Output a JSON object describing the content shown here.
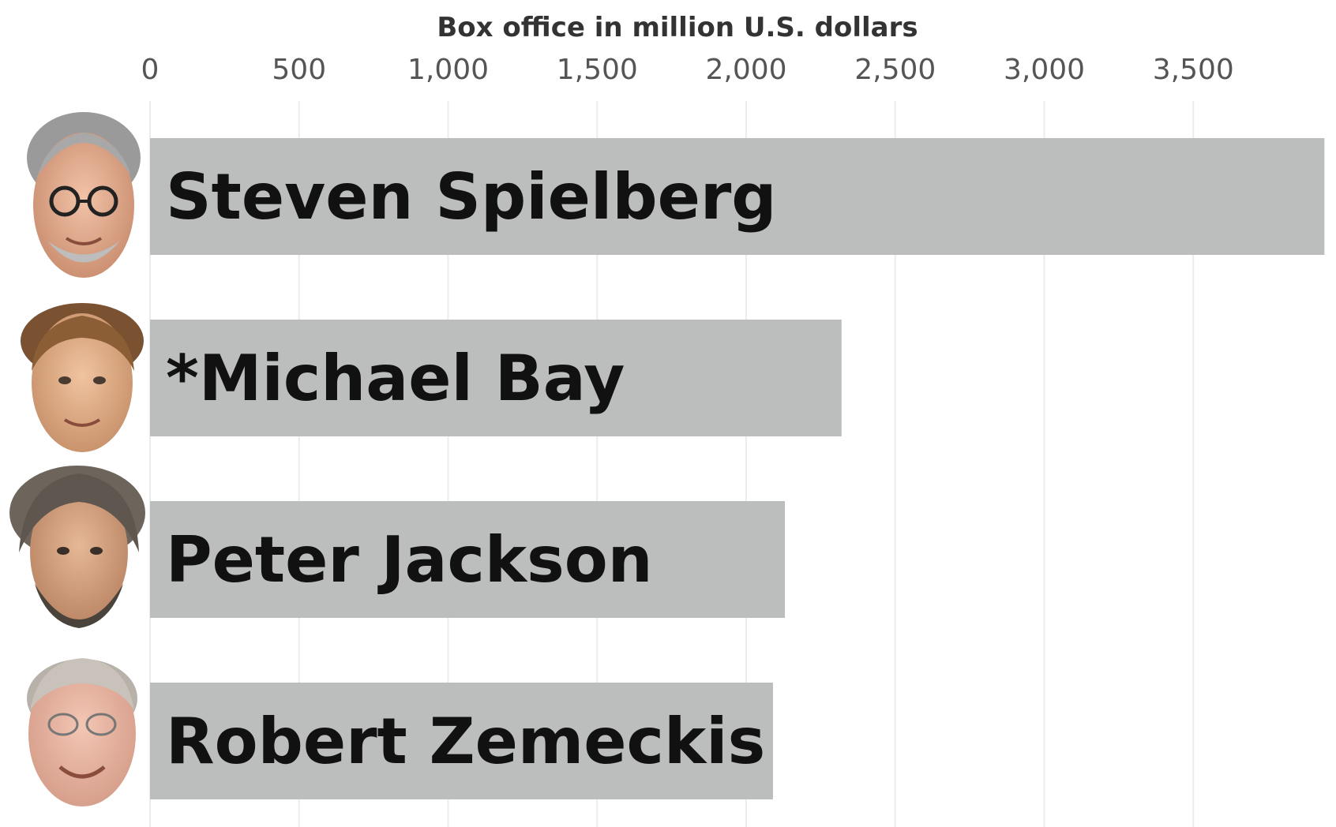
{
  "chart_data": {
    "type": "bar",
    "orientation": "horizontal",
    "title": "",
    "xlabel": "Box office in million U.S. dollars",
    "ylabel": "",
    "xlim": [
      0,
      3900
    ],
    "x_ticks": [
      0,
      500,
      1000,
      1500,
      2000,
      2500,
      3000,
      3500
    ],
    "x_tick_labels": [
      "0",
      "500",
      "1,000",
      "1,500",
      "2,000",
      "2,500",
      "3,000",
      "3,500"
    ],
    "categories": [
      "Steven Spielberg",
      "*Michael Bay",
      "Peter Jackson",
      "Robert Zemeckis"
    ],
    "values": [
      3940,
      2320,
      2130,
      2090
    ],
    "grid": "vertical",
    "legend": "none",
    "colors": {
      "bar": "#bcbebe",
      "grid": "#ececec"
    },
    "icons": [
      "steven-spielberg-portrait",
      "michael-bay-portrait",
      "peter-jackson-portrait",
      "robert-zemeckis-portrait"
    ]
  }
}
